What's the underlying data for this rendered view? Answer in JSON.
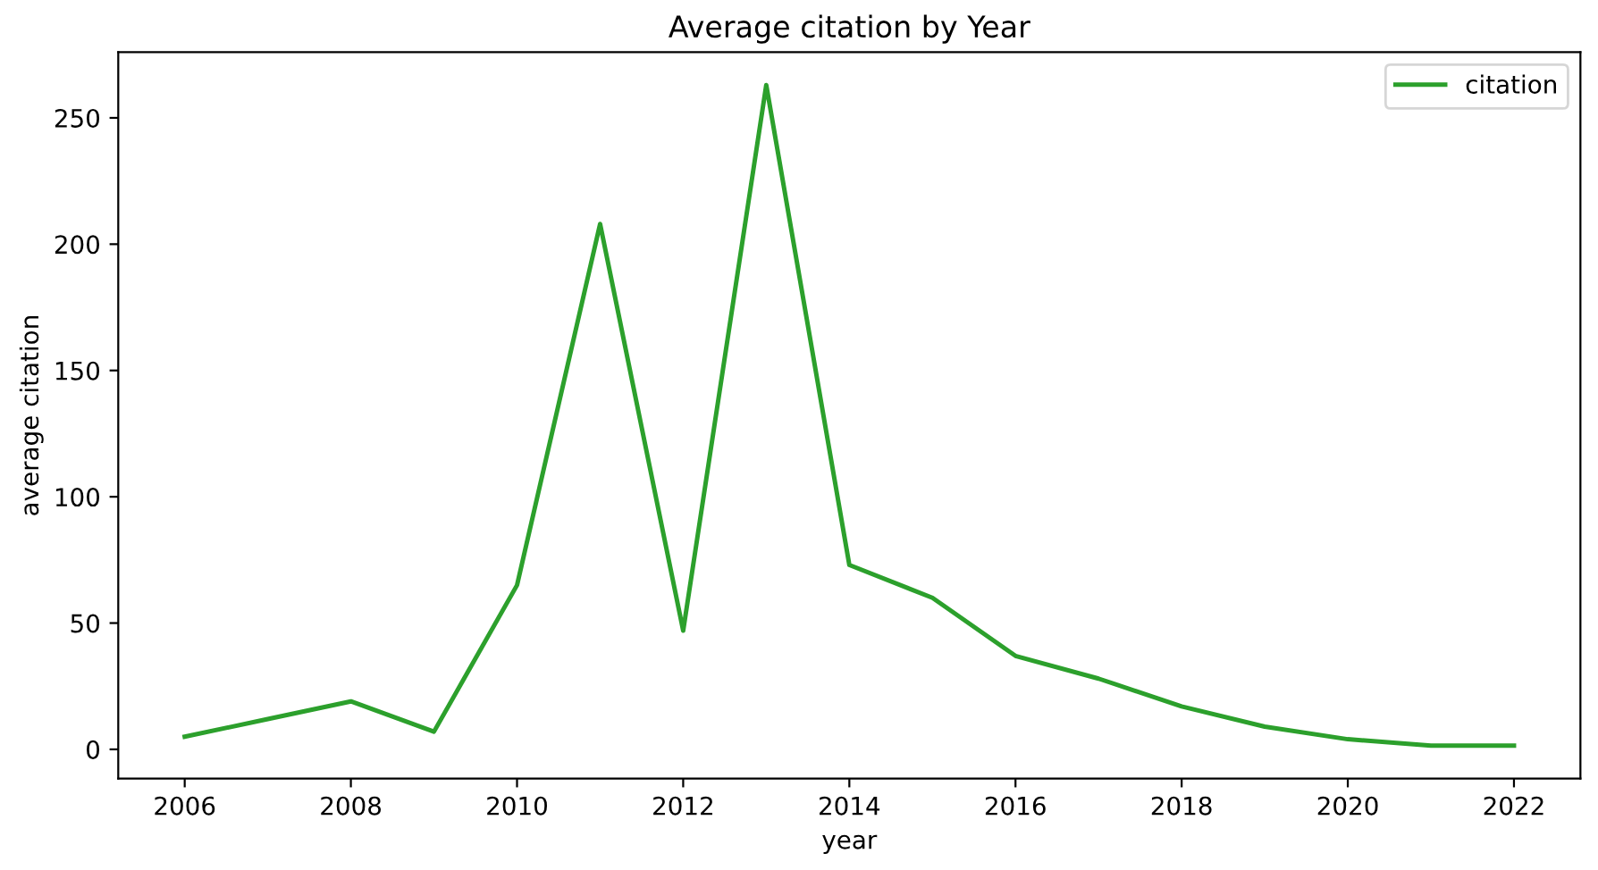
{
  "chart_data": {
    "type": "line",
    "title": "Average citation by Year",
    "xlabel": "year",
    "ylabel": "average citation",
    "x": [
      2006,
      2007,
      2008,
      2009,
      2010,
      2011,
      2012,
      2013,
      2014,
      2015,
      2016,
      2017,
      2018,
      2019,
      2020,
      2021,
      2022
    ],
    "series": [
      {
        "name": "citation",
        "color": "#2ca02c",
        "values": [
          5,
          12,
          19,
          7,
          65,
          208,
          47,
          263,
          73,
          60,
          37,
          28,
          17,
          9,
          4,
          1.5,
          1.5
        ]
      }
    ],
    "xlim": [
      2005.2,
      2022.8
    ],
    "xticks": [
      2006,
      2008,
      2010,
      2012,
      2014,
      2016,
      2018,
      2020,
      2022
    ],
    "ylim": [
      -11.6,
      276
    ],
    "yticks": [
      0,
      50,
      100,
      150,
      200,
      250
    ],
    "legend": "top right",
    "grid": false,
    "marker": "none",
    "line_style": "solid"
  }
}
